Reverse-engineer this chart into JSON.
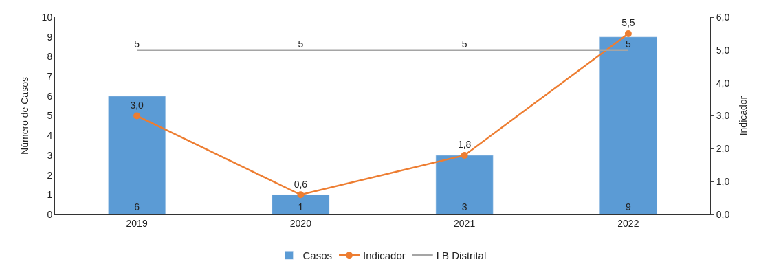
{
  "chart_data": {
    "type": "bar",
    "categories": [
      "2019",
      "2020",
      "2021",
      "2022"
    ],
    "ylabel": "Número de Casos",
    "y2label": "Indicador",
    "series": [
      {
        "name": "Casos",
        "color": "#5b9bd5",
        "values": [
          6,
          1,
          3,
          9
        ],
        "value_labels": [
          "6",
          "1",
          "3",
          "9"
        ]
      },
      {
        "name": "Indicador",
        "type": "line",
        "axis": "y2",
        "color": "#ed7d31",
        "marker": "circle",
        "values": [
          3.0,
          0.6,
          1.8,
          5.5
        ],
        "value_labels": [
          "3,0",
          "0,6",
          "1,8",
          "5,5"
        ]
      },
      {
        "name": "LB Distrital",
        "type": "line",
        "axis": "y2",
        "color": "#a5a5a5",
        "marker": "none",
        "values": [
          5,
          5,
          5,
          5
        ],
        "value_labels": [
          "5",
          "5",
          "5",
          "5"
        ]
      }
    ],
    "ylim": [
      0,
      10
    ],
    "yticks": [
      0,
      1,
      2,
      3,
      4,
      5,
      6,
      7,
      8,
      9,
      10
    ],
    "y2lim": [
      0,
      6
    ],
    "y2ticks": [
      {
        "value": 0,
        "label": "0,0"
      },
      {
        "value": 1,
        "label": "1,0"
      },
      {
        "value": 2,
        "label": "2,0"
      },
      {
        "value": 3,
        "label": "3,0"
      },
      {
        "value": 4,
        "label": "4,0"
      },
      {
        "value": 5,
        "label": "5,0"
      },
      {
        "value": 6,
        "label": "6,0"
      }
    ],
    "legend": "bottom"
  }
}
